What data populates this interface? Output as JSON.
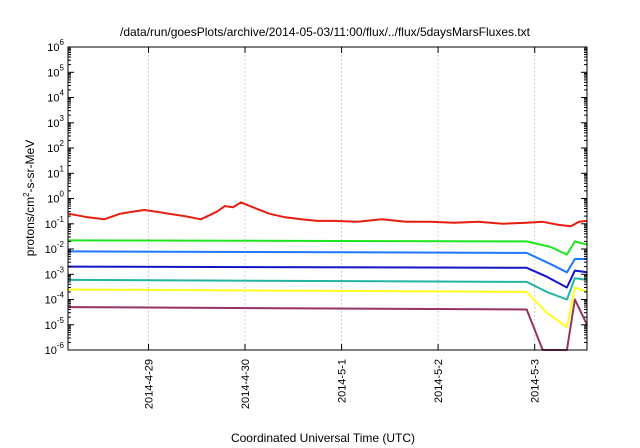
{
  "chart_data": {
    "type": "line",
    "title": "/data/run/goesPlots/archive/2014-05-03/11:00/flux/../flux/5daysMarsFluxes.txt",
    "xlabel": "Coordinated Universal Time (UTC)",
    "ylabel": {
      "prefix": "protons/cm",
      "superscript": "2",
      "suffix": "-s-sr-MeV"
    },
    "yscale": "log",
    "ylim": [
      1e-06,
      1000000.0
    ],
    "xlim": [
      "2014-04-28T04:00",
      "2014-05-03T13:00"
    ],
    "grid": true,
    "x_ticks": [
      {
        "date": "2014-04-29",
        "label": "2014-4-29"
      },
      {
        "date": "2014-04-30",
        "label": "2014-4-30"
      },
      {
        "date": "2014-05-01",
        "label": "2014-5-1"
      },
      {
        "date": "2014-05-02",
        "label": "2014-5-2"
      },
      {
        "date": "2014-05-03",
        "label": "2014-5-3"
      }
    ],
    "y_ticks": [
      {
        "value": 1e-06,
        "base": "10",
        "exp": "-6"
      },
      {
        "value": 1e-05,
        "base": "10",
        "exp": "-5"
      },
      {
        "value": 0.0001,
        "base": "10",
        "exp": "-4"
      },
      {
        "value": 0.001,
        "base": "10",
        "exp": "-3"
      },
      {
        "value": 0.01,
        "base": "10",
        "exp": "-2"
      },
      {
        "value": 0.1,
        "base": "10",
        "exp": "-1"
      },
      {
        "value": 1,
        "base": "10",
        "exp": "0"
      },
      {
        "value": 10,
        "base": "10",
        "exp": "1"
      },
      {
        "value": 100,
        "base": "10",
        "exp": "2"
      },
      {
        "value": 1000,
        "base": "10",
        "exp": "3"
      },
      {
        "value": 10000,
        "base": "10",
        "exp": "4"
      },
      {
        "value": 100000,
        "base": "10",
        "exp": "5"
      },
      {
        "value": 1000000,
        "base": "10",
        "exp": "6"
      }
    ],
    "series": [
      {
        "color": "#e51e10",
        "x": [
          "2014-04-28T04:00",
          "2014-04-28T09:00",
          "2014-04-28T13:00",
          "2014-04-28T17:00",
          "2014-04-28T20:00",
          "2014-04-28T23:00",
          "2014-04-29T02:00",
          "2014-04-29T05:00",
          "2014-04-29T09:00",
          "2014-04-29T13:00",
          "2014-04-29T17:00",
          "2014-04-29T19:00",
          "2014-04-29T21:00",
          "2014-04-29T23:00",
          "2014-04-30T02:00",
          "2014-04-30T06:00",
          "2014-04-30T10:00",
          "2014-04-30T14:00",
          "2014-04-30T18:00",
          "2014-04-30T22:00",
          "2014-05-01T04:00",
          "2014-05-01T10:00",
          "2014-05-01T16:00",
          "2014-05-01T22:00",
          "2014-05-02T04:00",
          "2014-05-02T10:00",
          "2014-05-02T16:00",
          "2014-05-02T22:00",
          "2014-05-03T02:00",
          "2014-05-03T06:00",
          "2014-05-03T09:00",
          "2014-05-03T11:00",
          "2014-05-03T13:00"
        ],
        "y": [
          0.25,
          0.18,
          0.15,
          0.25,
          0.3,
          0.35,
          0.3,
          0.25,
          0.2,
          0.15,
          0.3,
          0.5,
          0.45,
          0.7,
          0.45,
          0.25,
          0.18,
          0.15,
          0.13,
          0.13,
          0.12,
          0.15,
          0.12,
          0.12,
          0.11,
          0.12,
          0.1,
          0.11,
          0.12,
          0.09,
          0.08,
          0.12,
          0.13
        ]
      },
      {
        "color": "#1ee61e",
        "x": [
          "2014-04-28T04:00",
          "2014-05-02T22:00",
          "2014-05-03T04:00",
          "2014-05-03T08:00",
          "2014-05-03T10:00",
          "2014-05-03T13:00"
        ],
        "y": [
          0.022,
          0.02,
          0.012,
          0.006,
          0.02,
          0.015
        ]
      },
      {
        "color": "#1e78ff",
        "x": [
          "2014-04-28T04:00",
          "2014-05-02T22:00",
          "2014-05-03T04:00",
          "2014-05-03T08:00",
          "2014-05-03T10:00",
          "2014-05-03T13:00"
        ],
        "y": [
          0.008,
          0.007,
          0.0025,
          0.0012,
          0.004,
          0.004
        ]
      },
      {
        "color": "#1414c8",
        "x": [
          "2014-04-28T04:00",
          "2014-05-02T22:00",
          "2014-05-03T03:00",
          "2014-05-03T08:00",
          "2014-05-03T10:00",
          "2014-05-03T13:00"
        ],
        "y": [
          0.002,
          0.0018,
          0.0008,
          0.0003,
          0.0014,
          0.0012
        ]
      },
      {
        "color": "#23b4a0",
        "x": [
          "2014-04-28T04:00",
          "2014-05-02T22:00",
          "2014-05-03T03:00",
          "2014-05-03T08:00",
          "2014-05-03T10:00",
          "2014-05-03T13:00"
        ],
        "y": [
          0.0006,
          0.0005,
          0.0002,
          0.0001,
          0.0007,
          0.0006
        ]
      },
      {
        "color": "#ffff1e",
        "x": [
          "2014-04-28T04:00",
          "2014-05-02T22:00",
          "2014-05-03T03:00",
          "2014-05-03T08:00",
          "2014-05-03T10:00",
          "2014-05-03T13:00"
        ],
        "y": [
          0.00025,
          0.0002,
          3e-05,
          8e-06,
          0.0003,
          0.0002
        ]
      },
      {
        "color": "#963264",
        "x": [
          "2014-04-28T04:00",
          "2014-05-02T22:00",
          "2014-05-03T02:00",
          "2014-05-03T08:00",
          "2014-05-03T10:00",
          "2014-05-03T13:00"
        ],
        "y": [
          5e-05,
          4e-05,
          1e-06,
          1e-06,
          0.0001,
          1e-05
        ]
      }
    ]
  }
}
